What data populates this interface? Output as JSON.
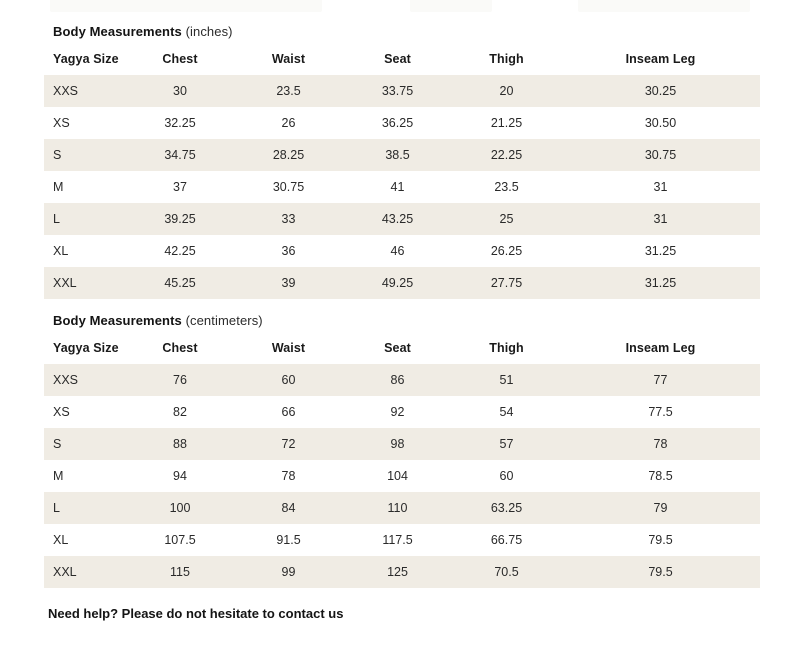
{
  "tables": [
    {
      "title_bold": "Body Measurements",
      "title_unit": "(inches)",
      "columns": [
        "Yagya Size",
        "Chest",
        "Waist",
        "Seat",
        "Thigh",
        "Inseam Leg"
      ],
      "rows": [
        [
          "XXS",
          "30",
          "23.5",
          "33.75",
          "20",
          "30.25"
        ],
        [
          "XS",
          "32.25",
          "26",
          "36.25",
          "21.25",
          "30.50"
        ],
        [
          "S",
          "34.75",
          "28.25",
          "38.5",
          "22.25",
          "30.75"
        ],
        [
          "M",
          "37",
          "30.75",
          "41",
          "23.5",
          "31"
        ],
        [
          "L",
          "39.25",
          "33",
          "43.25",
          "25",
          "31"
        ],
        [
          "XL",
          "42.25",
          "36",
          "46",
          "26.25",
          "31.25"
        ],
        [
          "XXL",
          "45.25",
          "39",
          "49.25",
          "27.75",
          "31.25"
        ]
      ]
    },
    {
      "title_bold": "Body Measurements",
      "title_unit": "(centimeters)",
      "columns": [
        "Yagya Size",
        "Chest",
        "Waist",
        "Seat",
        "Thigh",
        "Inseam Leg"
      ],
      "rows": [
        [
          "XXS",
          "76",
          "60",
          "86",
          "51",
          "77"
        ],
        [
          "XS",
          "82",
          "66",
          "92",
          "54",
          "77.5"
        ],
        [
          "S",
          "88",
          "72",
          "98",
          "57",
          "78"
        ],
        [
          "M",
          "94",
          "78",
          "104",
          "60",
          "78.5"
        ],
        [
          "L",
          "100",
          "84",
          "110",
          "63.25",
          "79"
        ],
        [
          "XL",
          "107.5",
          "91.5",
          "117.5",
          "66.75",
          "79.5"
        ],
        [
          "XXL",
          "115",
          "99",
          "125",
          "70.5",
          "79.5"
        ]
      ]
    }
  ],
  "footer": {
    "help_text": "Need help? Please do not hesitate to contact us"
  },
  "colors": {
    "stripe": "#f0ece4",
    "text": "#2a2a2a",
    "title": "#141414"
  }
}
